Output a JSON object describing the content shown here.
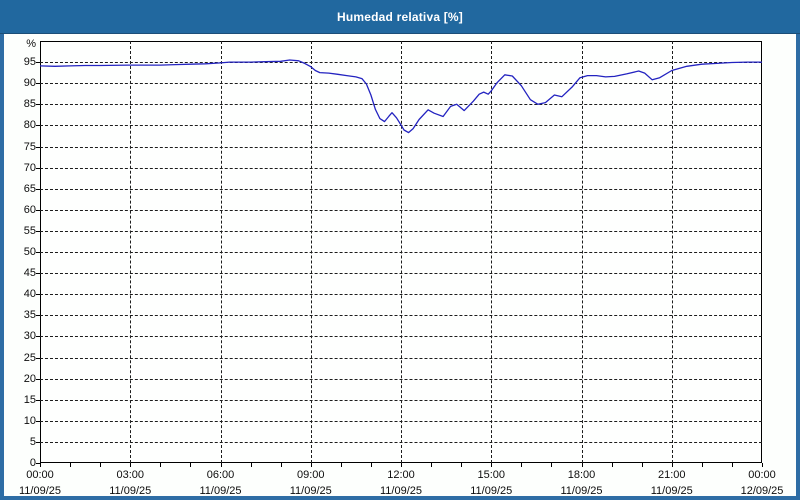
{
  "window": {
    "title": "Humedad relativa [%]"
  },
  "colors": {
    "frame": "#2e6da5",
    "titlebar": "#21689f",
    "title_text": "#ffffff",
    "plot_background": "#fefffe",
    "grid": "#1c1c1c",
    "axis": "#000000",
    "line": "#2323c0",
    "labels": "#0d0d0d"
  },
  "chart_data": {
    "type": "line",
    "title": "Humedad relativa [%]",
    "ylabel": "%",
    "y_unit_label": "%",
    "ylim": [
      0,
      100
    ],
    "y_tick_step": 5,
    "y_ticks": [
      0,
      5,
      10,
      15,
      20,
      25,
      30,
      35,
      40,
      45,
      50,
      55,
      60,
      65,
      70,
      75,
      80,
      85,
      90,
      95
    ],
    "x_hours_range": [
      0,
      24
    ],
    "x_minor_tick_hours": 1,
    "grid": "dashed",
    "legend_position": "none",
    "x_ticks": [
      {
        "hour": 0,
        "time": "00:00",
        "date": "11/09/25"
      },
      {
        "hour": 3,
        "time": "03:00",
        "date": "11/09/25"
      },
      {
        "hour": 6,
        "time": "06:00",
        "date": "11/09/25"
      },
      {
        "hour": 9,
        "time": "09:00",
        "date": "11/09/25"
      },
      {
        "hour": 12,
        "time": "12:00",
        "date": "11/09/25"
      },
      {
        "hour": 15,
        "time": "15:00",
        "date": "11/09/25"
      },
      {
        "hour": 18,
        "time": "18:00",
        "date": "11/09/25"
      },
      {
        "hour": 21,
        "time": "21:00",
        "date": "11/09/25"
      },
      {
        "hour": 24,
        "time": "00:00",
        "date": "12/09/25"
      }
    ],
    "series": [
      {
        "name": "Humedad relativa",
        "color": "#2323c0",
        "points_hour_value": [
          [
            0,
            94.1
          ],
          [
            0.5,
            94.0
          ],
          [
            1,
            94.1
          ],
          [
            1.5,
            94.2
          ],
          [
            2,
            94.2
          ],
          [
            3,
            94.3
          ],
          [
            4,
            94.3
          ],
          [
            4.5,
            94.4
          ],
          [
            5,
            94.5
          ],
          [
            5.5,
            94.6
          ],
          [
            6,
            94.8
          ],
          [
            6.3,
            95.0
          ],
          [
            7,
            95.0
          ],
          [
            7.5,
            95.1
          ],
          [
            8,
            95.2
          ],
          [
            8.3,
            95.5
          ],
          [
            8.6,
            95.3
          ],
          [
            8.8,
            94.7
          ],
          [
            9.0,
            93.9
          ],
          [
            9.15,
            93.0
          ],
          [
            9.3,
            92.5
          ],
          [
            9.6,
            92.4
          ],
          [
            9.9,
            92.1
          ],
          [
            10.2,
            91.8
          ],
          [
            10.5,
            91.5
          ],
          [
            10.7,
            91.1
          ],
          [
            10.85,
            89.8
          ],
          [
            11.0,
            87.2
          ],
          [
            11.15,
            83.8
          ],
          [
            11.3,
            81.6
          ],
          [
            11.45,
            80.9
          ],
          [
            11.6,
            82.2
          ],
          [
            11.7,
            83.0
          ],
          [
            11.85,
            81.8
          ],
          [
            12.0,
            80.1
          ],
          [
            12.1,
            78.9
          ],
          [
            12.25,
            78.3
          ],
          [
            12.4,
            79.2
          ],
          [
            12.6,
            81.4
          ],
          [
            12.9,
            83.7
          ],
          [
            13.1,
            82.9
          ],
          [
            13.4,
            82.1
          ],
          [
            13.65,
            84.5
          ],
          [
            13.85,
            85.0
          ],
          [
            14.1,
            83.5
          ],
          [
            14.4,
            85.7
          ],
          [
            14.6,
            87.4
          ],
          [
            14.75,
            87.9
          ],
          [
            14.9,
            87.4
          ],
          [
            15.0,
            88.2
          ],
          [
            15.2,
            90.2
          ],
          [
            15.45,
            92.0
          ],
          [
            15.7,
            91.7
          ],
          [
            16.0,
            89.4
          ],
          [
            16.3,
            86.1
          ],
          [
            16.55,
            85.0
          ],
          [
            16.8,
            85.4
          ],
          [
            17.1,
            87.2
          ],
          [
            17.35,
            86.8
          ],
          [
            17.7,
            89.2
          ],
          [
            17.95,
            91.3
          ],
          [
            18.2,
            91.8
          ],
          [
            18.5,
            91.8
          ],
          [
            18.8,
            91.5
          ],
          [
            19.1,
            91.6
          ],
          [
            19.5,
            92.2
          ],
          [
            19.9,
            92.9
          ],
          [
            20.1,
            92.4
          ],
          [
            20.35,
            90.8
          ],
          [
            20.6,
            91.3
          ],
          [
            21.0,
            93.0
          ],
          [
            21.5,
            94.0
          ],
          [
            22.0,
            94.5
          ],
          [
            22.5,
            94.7
          ],
          [
            23.0,
            94.9
          ],
          [
            23.5,
            95.0
          ],
          [
            24.0,
            95.0
          ]
        ]
      }
    ]
  }
}
